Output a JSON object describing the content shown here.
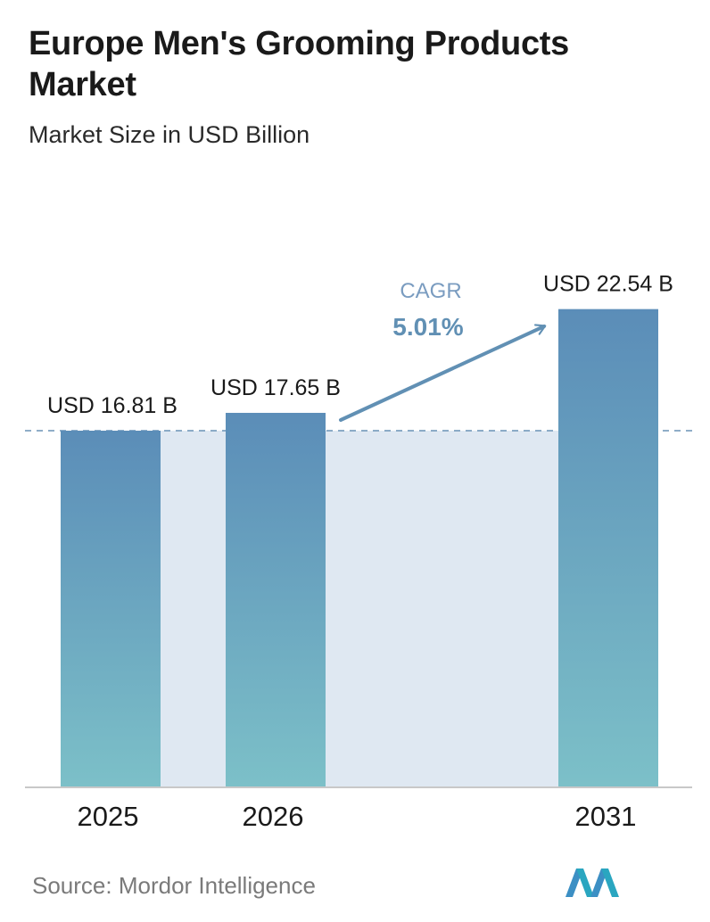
{
  "header": {
    "title": "Europe Men's Grooming Products Market",
    "subtitle": "Market Size in USD Billion"
  },
  "chart_data": {
    "type": "bar",
    "categories": [
      "2025",
      "2026",
      "2031"
    ],
    "values": [
      16.81,
      17.65,
      22.54
    ],
    "value_labels": [
      "USD 16.81 B",
      "USD 17.65 B",
      "USD 22.54 B"
    ],
    "title": "Europe Men's Grooming Products Market",
    "subtitle": "Market Size in USD Billion",
    "xlabel": "",
    "ylabel": "",
    "grid": false,
    "annotation": {
      "label": "CAGR",
      "value": "5.01%"
    },
    "colors": {
      "bar_top": "#5b8db8",
      "bar_bottom": "#7cc0c8",
      "band": "#dfe8f2",
      "accent": "#6190b4"
    }
  },
  "footer": {
    "source": "Source:  Mordor Intelligence",
    "logo": "mordor-intelligence-logo"
  }
}
